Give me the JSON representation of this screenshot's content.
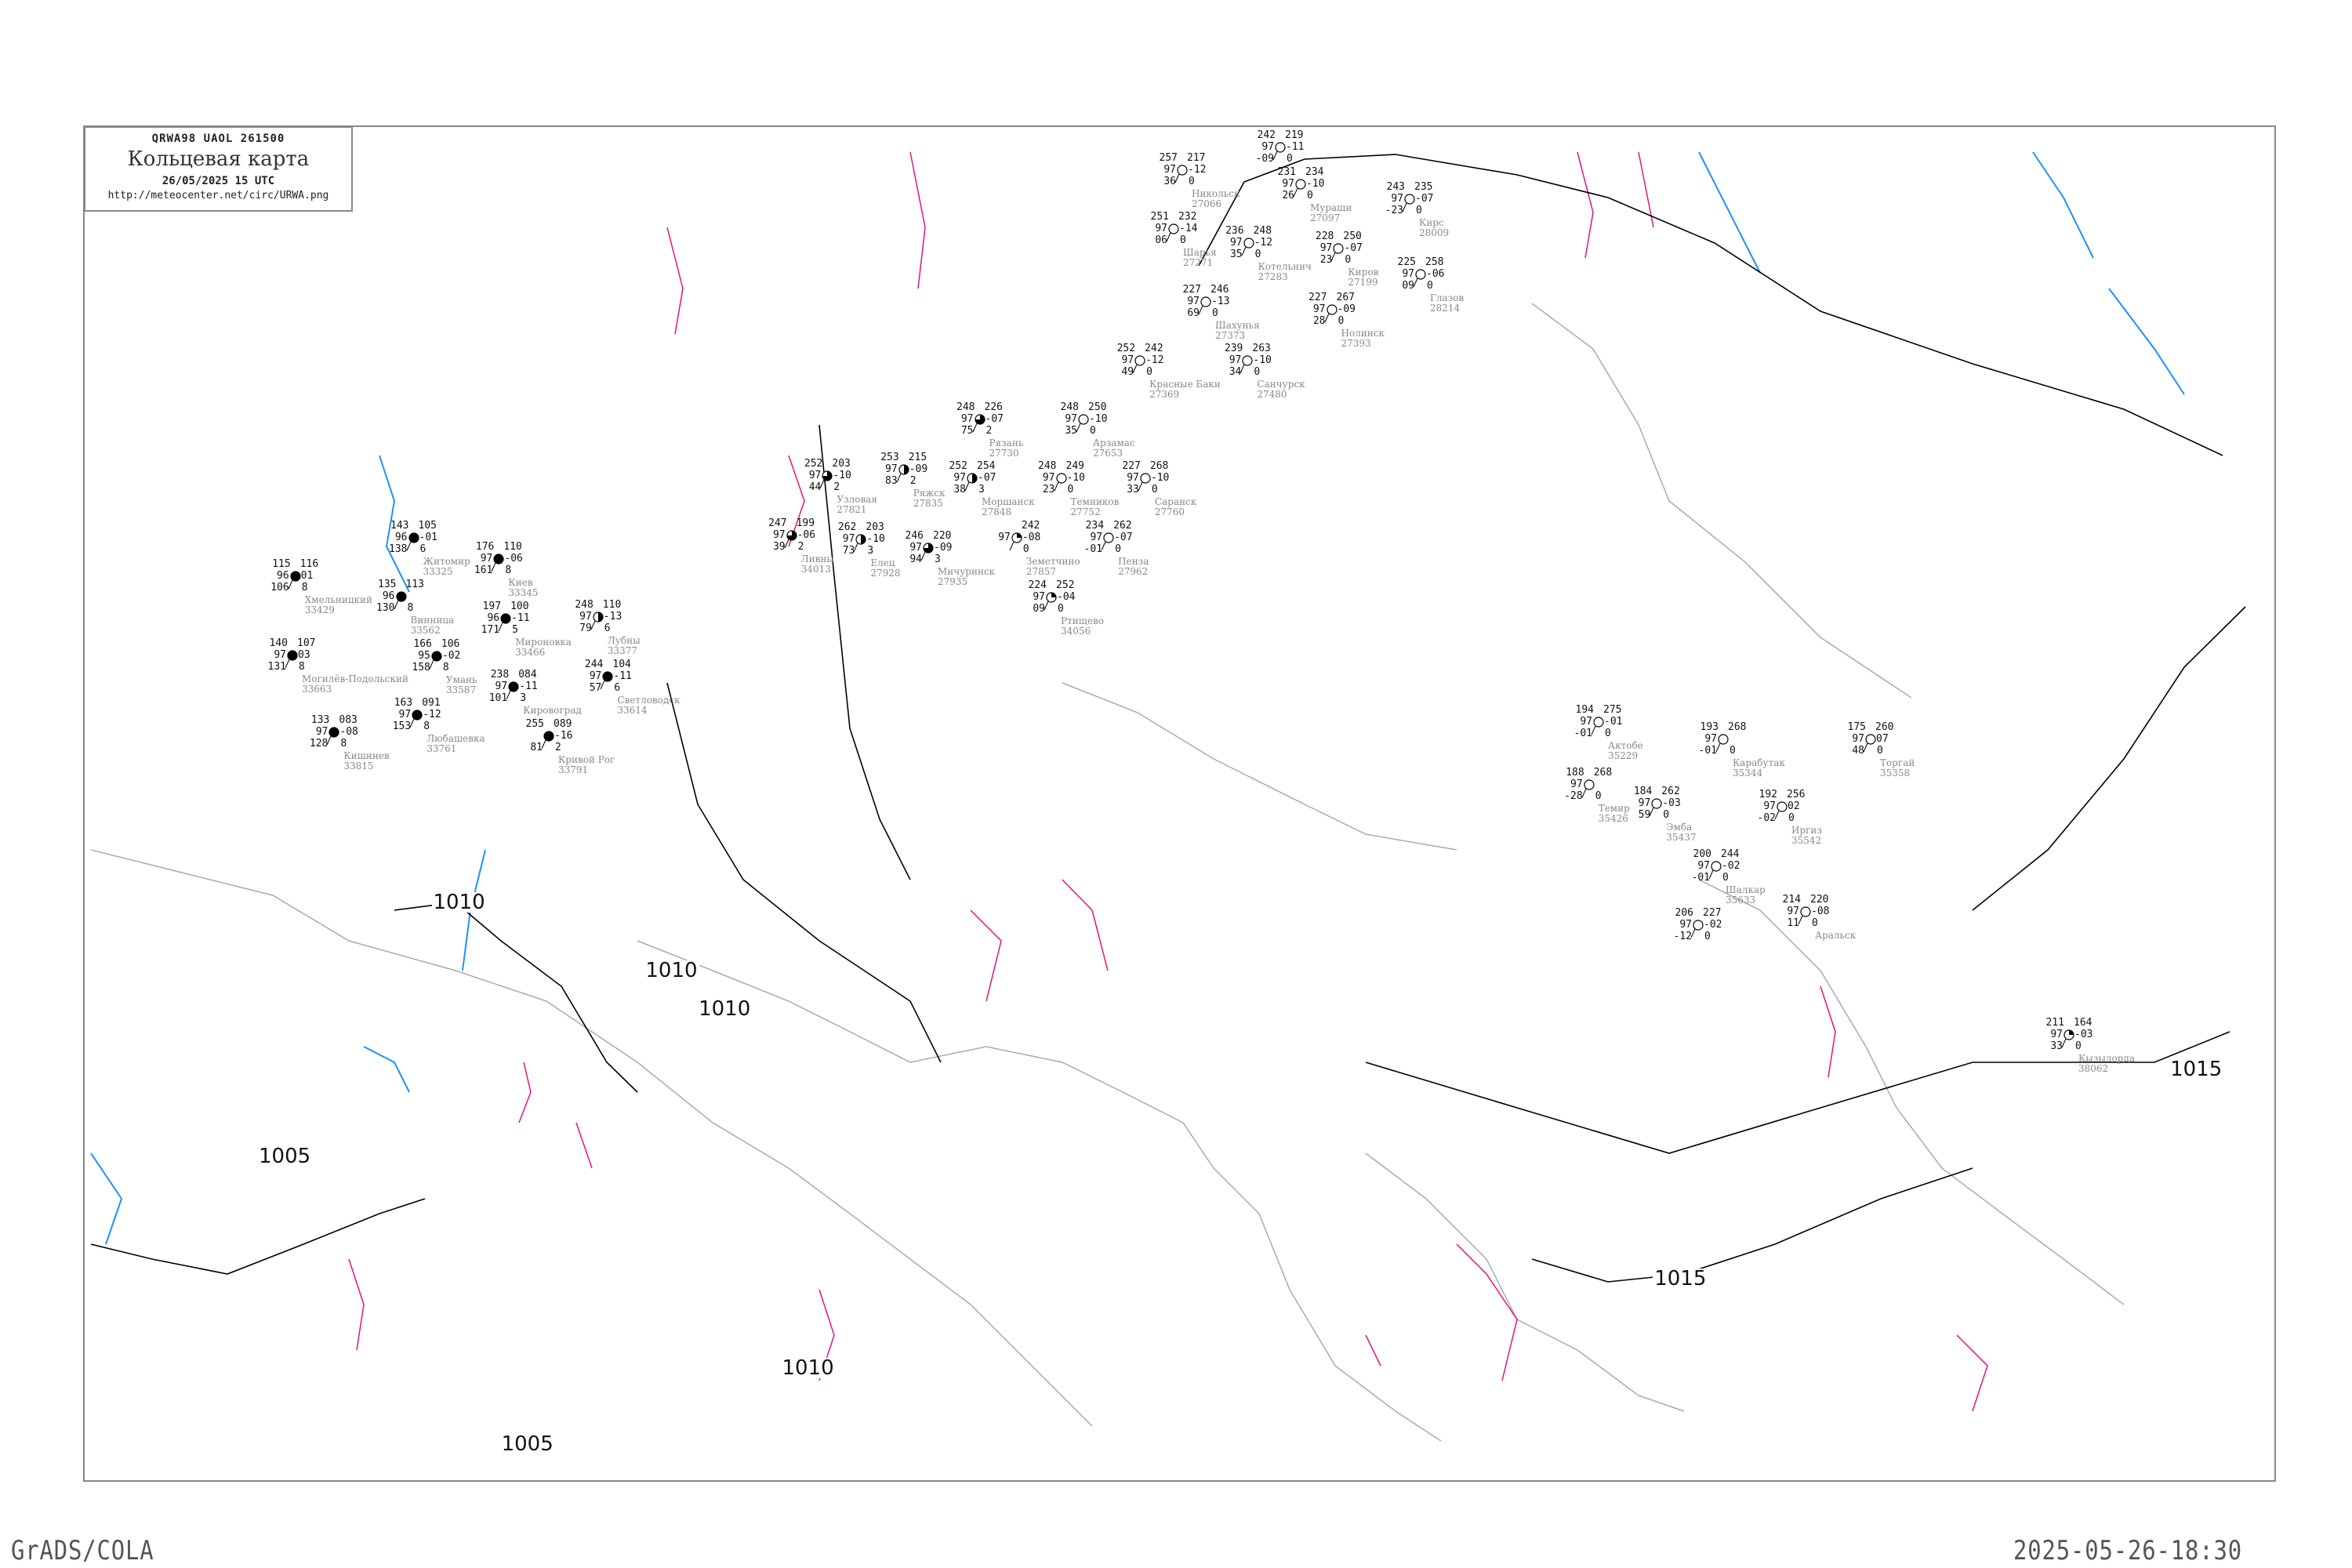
{
  "header": {
    "code_line": "QRWA98   UAOL   261500",
    "title": "Кольцевая карта",
    "datetime": "26/05/2025 15 UTC",
    "url": "http://meteocenter.net/circ/URWA.png"
  },
  "footer": {
    "left": "GrADS/COLA",
    "right": "2025-05-26-18:30"
  },
  "colors": {
    "isobar": "#000000",
    "coastline": "#aaaaaa",
    "isotherm": "#e0157a",
    "river": "#1e90ff",
    "station_name": "#888888",
    "frame": "#888888"
  },
  "isobar_labels": [
    "1010",
    "1010",
    "1010",
    "1015",
    "1015",
    "1005",
    "1010",
    "1005"
  ],
  "stations": [
    {
      "name": "Никольск",
      "index": "27066",
      "tl": "257",
      "ml": "97",
      "bl": "36",
      "tr": "217",
      "mr": "-12",
      "br": "0",
      "cloud": 0
    },
    {
      "name": "",
      "index": "",
      "tl": "242",
      "ml": "97",
      "bl": "-09",
      "tr": "219",
      "mr": "-11",
      "br": "0",
      "cloud": 0
    },
    {
      "name": "Шарья",
      "index": "27271",
      "tl": "251",
      "ml": "97",
      "bl": "06",
      "tr": "232",
      "mr": "-14",
      "br": "0",
      "cloud": 0
    },
    {
      "name": "Мураши",
      "index": "27097",
      "tl": "231",
      "ml": "97",
      "bl": "26",
      "tr": "234",
      "mr": "-10",
      "br": "0",
      "cloud": 0
    },
    {
      "name": "Киров",
      "index": "27199",
      "tl": "228",
      "ml": "97",
      "bl": "23",
      "tr": "250",
      "mr": "-07",
      "br": "0",
      "cloud": 0
    },
    {
      "name": "Котельнич",
      "index": "27283",
      "tl": "236",
      "ml": "97",
      "bl": "35",
      "tr": "248",
      "mr": "-12",
      "br": "0",
      "cloud": 0
    },
    {
      "name": "Кирс",
      "index": "28009",
      "tl": "243",
      "ml": "97",
      "bl": "-23",
      "tr": "235",
      "mr": "-07",
      "br": "0",
      "cloud": 0
    },
    {
      "name": "Глазов",
      "index": "28214",
      "tl": "225",
      "ml": "97",
      "bl": "09",
      "tr": "258",
      "mr": "-06",
      "br": "0",
      "cloud": 0
    },
    {
      "name": "Нолинск",
      "index": "27393",
      "tl": "227",
      "ml": "97",
      "bl": "28",
      "tr": "267",
      "mr": "-09",
      "br": "0",
      "cloud": 0
    },
    {
      "name": "Шахунья",
      "index": "27373",
      "tl": "227",
      "ml": "97",
      "bl": "69",
      "tr": "246",
      "mr": "-13",
      "br": "0",
      "cloud": 0
    },
    {
      "name": "Красные Баки",
      "index": "27369",
      "tl": "252",
      "ml": "97",
      "bl": "49",
      "tr": "242",
      "mr": "-12",
      "br": "0",
      "cloud": 0
    },
    {
      "name": "Санчурск",
      "index": "27480",
      "tl": "239",
      "ml": "97",
      "bl": "34",
      "tr": "263",
      "mr": "-10",
      "br": "0",
      "cloud": 0
    },
    {
      "name": "Рязань",
      "index": "27730",
      "tl": "248",
      "ml": "97",
      "bl": "75",
      "tr": "226",
      "mr": "-07",
      "br": "2",
      "cloud": 0.75
    },
    {
      "name": "Ряжск",
      "index": "27835",
      "tl": "253",
      "ml": "97",
      "bl": "83",
      "tr": "215",
      "mr": "-09",
      "br": "2",
      "cloud": 0.5
    },
    {
      "name": "Мичуринск",
      "index": "27935",
      "tl": "246",
      "ml": "97",
      "bl": "94",
      "tr": "220",
      "mr": "-09",
      "br": "3",
      "cloud": 0.75
    },
    {
      "name": "Моршанск",
      "index": "27848",
      "tl": "252",
      "ml": "97",
      "bl": "38",
      "tr": "254",
      "mr": "-07",
      "br": "3",
      "cloud": 0.5
    },
    {
      "name": "Земетчино",
      "index": "27857",
      "tl": "",
      "ml": "97",
      "bl": "",
      "tr": "242",
      "mr": "-08",
      "br": "0",
      "cloud": 0.25
    },
    {
      "name": "Темников",
      "index": "27752",
      "tl": "248",
      "ml": "97",
      "bl": "23",
      "tr": "249",
      "mr": "-10",
      "br": "0",
      "cloud": 0
    },
    {
      "name": "Арзамас",
      "index": "27653",
      "tl": "248",
      "ml": "97",
      "bl": "35",
      "tr": "250",
      "mr": "-10",
      "br": "0",
      "cloud": 0
    },
    {
      "name": "Саранск",
      "index": "27760",
      "tl": "227",
      "ml": "97",
      "bl": "33",
      "tr": "268",
      "mr": "-10",
      "br": "0",
      "cloud": 0
    },
    {
      "name": "Пенза",
      "index": "27962",
      "tl": "234",
      "ml": "97",
      "bl": "-01",
      "tr": "262",
      "mr": "-07",
      "br": "0",
      "cloud": 0
    },
    {
      "name": "Ртищево",
      "index": "34056",
      "tl": "224",
      "ml": "97",
      "bl": "09",
      "tr": "252",
      "mr": "-04",
      "br": "0",
      "cloud": 0.25
    },
    {
      "name": "Елец",
      "index": "27928",
      "tl": "262",
      "ml": "97",
      "bl": "73",
      "tr": "203",
      "mr": "-10",
      "br": "3",
      "cloud": 0.5
    },
    {
      "name": "Ливны",
      "index": "34013",
      "tl": "247",
      "ml": "97",
      "bl": "39",
      "tr": "199",
      "mr": "-06",
      "br": "2",
      "cloud": 0.75
    },
    {
      "name": "Узловая",
      "index": "27821",
      "tl": "252",
      "ml": "97",
      "bl": "44",
      "tr": "203",
      "mr": "-10",
      "br": "2",
      "cloud": 0.75
    },
    {
      "name": "Житомир",
      "index": "33325",
      "tl": "143",
      "ml": "96",
      "bl": "138",
      "tr": "105",
      "mr": "-01",
      "br": "6",
      "cloud": 1
    },
    {
      "name": "Киев",
      "index": "33345",
      "tl": "176",
      "ml": "97",
      "bl": "161",
      "tr": "110",
      "mr": "-06",
      "br": "8",
      "cloud": 1
    },
    {
      "name": "Мироновка",
      "index": "33466",
      "tl": "197",
      "ml": "96",
      "bl": "171",
      "tr": "100",
      "mr": "-11",
      "br": "5",
      "cloud": 1
    },
    {
      "name": "Винница",
      "index": "33562",
      "tl": "135",
      "ml": "96",
      "bl": "130",
      "tr": "113",
      "mr": "",
      "br": "8",
      "cloud": 1
    },
    {
      "name": "Умань",
      "index": "33587",
      "tl": "166",
      "ml": "95",
      "bl": "158",
      "tr": "106",
      "mr": "-02",
      "br": "8",
      "cloud": 1
    },
    {
      "name": "Могилёв-Подольский",
      "index": "33663",
      "tl": "140",
      "ml": "97",
      "bl": "131",
      "tr": "107",
      "mr": "03",
      "br": "8",
      "cloud": 1
    },
    {
      "name": "Любашевка",
      "index": "33761",
      "tl": "163",
      "ml": "97",
      "bl": "153",
      "tr": "091",
      "mr": "-12",
      "br": "8",
      "cloud": 1
    },
    {
      "name": "Кишинев",
      "index": "33815",
      "tl": "133",
      "ml": "97",
      "bl": "128",
      "tr": "083",
      "mr": "-08",
      "br": "8",
      "cloud": 1
    },
    {
      "name": "Кировоград",
      "index": "",
      "tl": "238",
      "ml": "97",
      "bl": "101",
      "tr": "084",
      "mr": "-11",
      "br": "3",
      "cloud": 1
    },
    {
      "name": "Кривой Рог",
      "index": "33791",
      "tl": "255",
      "ml": "",
      "bl": "81",
      "tr": "089",
      "mr": "-16",
      "br": "2",
      "cloud": 1
    },
    {
      "name": "Лубны",
      "index": "33377",
      "tl": "248",
      "ml": "97",
      "bl": "79",
      "tr": "110",
      "mr": "-13",
      "br": "6",
      "cloud": 0.5
    },
    {
      "name": "Светловодск",
      "index": "33614",
      "tl": "244",
      "ml": "97",
      "bl": "57",
      "tr": "104",
      "mr": "-11",
      "br": "6",
      "cloud": 1
    },
    {
      "name": "Хмельницкий",
      "index": "33429",
      "tl": "115",
      "ml": "96",
      "bl": "106",
      "tr": "116",
      "mr": "01",
      "br": "8",
      "cloud": 1
    },
    {
      "name": "Актобе",
      "index": "35229",
      "tl": "194",
      "ml": "97",
      "bl": "-01",
      "tr": "275",
      "mr": "-01",
      "br": "0",
      "cloud": 0
    },
    {
      "name": "Карабутак",
      "index": "35344",
      "tl": "193",
      "ml": "97",
      "bl": "-01",
      "tr": "268",
      "mr": "",
      "br": "0",
      "cloud": 0
    },
    {
      "name": "Торгай",
      "index": "35358",
      "tl": "175",
      "ml": "97",
      "bl": "48",
      "tr": "260",
      "mr": "07",
      "br": "0",
      "cloud": 0
    },
    {
      "name": "Темир",
      "index": "35426",
      "tl": "188",
      "ml": "97",
      "bl": "-28",
      "tr": "268",
      "mr": "",
      "br": "0",
      "cloud": 0
    },
    {
      "name": "Эмба",
      "index": "35437",
      "tl": "184",
      "ml": "97",
      "bl": "59",
      "tr": "262",
      "mr": "-03",
      "br": "0",
      "cloud": 0
    },
    {
      "name": "Иргиз",
      "index": "35542",
      "tl": "192",
      "ml": "97",
      "bl": "-02",
      "tr": "256",
      "mr": "02",
      "br": "0",
      "cloud": 0
    },
    {
      "name": "Шалкар",
      "index": "35633",
      "tl": "200",
      "ml": "97",
      "bl": "-01",
      "tr": "244",
      "mr": "-02",
      "br": "0",
      "cloud": 0
    },
    {
      "name": "Аральск",
      "index": "",
      "tl": "214",
      "ml": "97",
      "bl": "11",
      "tr": "220",
      "mr": "-08",
      "br": "0",
      "cloud": 0
    },
    {
      "name": "",
      "index": "",
      "tl": "206",
      "ml": "97",
      "bl": "-12",
      "tr": "227",
      "mr": "-02",
      "br": "0",
      "cloud": 0
    },
    {
      "name": "Кызылорда",
      "index": "38062",
      "tl": "211",
      "ml": "97",
      "bl": "33",
      "tr": "164",
      "mr": "-03",
      "br": "0",
      "cloud": 0.25
    }
  ]
}
